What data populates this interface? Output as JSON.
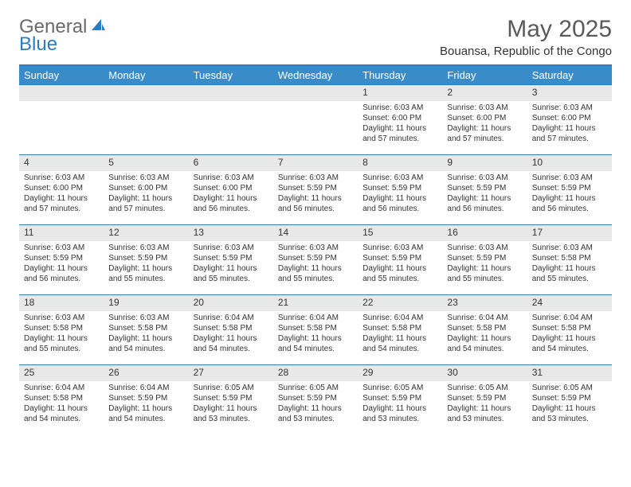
{
  "logo": {
    "text1": "General",
    "text2": "Blue"
  },
  "title": "May 2025",
  "location": "Bouansa, Republic of the Congo",
  "colors": {
    "header_bg": "#3a8cc9",
    "header_text": "#ffffff",
    "border": "#2d7bc0",
    "daynum_bg": "#e8e8e8",
    "text": "#333333",
    "logo_gray": "#6a6a6a",
    "logo_blue": "#2d7bc0"
  },
  "weekdays": [
    "Sunday",
    "Monday",
    "Tuesday",
    "Wednesday",
    "Thursday",
    "Friday",
    "Saturday"
  ],
  "weeks": [
    [
      null,
      null,
      null,
      null,
      {
        "n": "1",
        "sr": "Sunrise: 6:03 AM",
        "ss": "Sunset: 6:00 PM",
        "dl": "Daylight: 11 hours and 57 minutes."
      },
      {
        "n": "2",
        "sr": "Sunrise: 6:03 AM",
        "ss": "Sunset: 6:00 PM",
        "dl": "Daylight: 11 hours and 57 minutes."
      },
      {
        "n": "3",
        "sr": "Sunrise: 6:03 AM",
        "ss": "Sunset: 6:00 PM",
        "dl": "Daylight: 11 hours and 57 minutes."
      }
    ],
    [
      {
        "n": "4",
        "sr": "Sunrise: 6:03 AM",
        "ss": "Sunset: 6:00 PM",
        "dl": "Daylight: 11 hours and 57 minutes."
      },
      {
        "n": "5",
        "sr": "Sunrise: 6:03 AM",
        "ss": "Sunset: 6:00 PM",
        "dl": "Daylight: 11 hours and 57 minutes."
      },
      {
        "n": "6",
        "sr": "Sunrise: 6:03 AM",
        "ss": "Sunset: 6:00 PM",
        "dl": "Daylight: 11 hours and 56 minutes."
      },
      {
        "n": "7",
        "sr": "Sunrise: 6:03 AM",
        "ss": "Sunset: 5:59 PM",
        "dl": "Daylight: 11 hours and 56 minutes."
      },
      {
        "n": "8",
        "sr": "Sunrise: 6:03 AM",
        "ss": "Sunset: 5:59 PM",
        "dl": "Daylight: 11 hours and 56 minutes."
      },
      {
        "n": "9",
        "sr": "Sunrise: 6:03 AM",
        "ss": "Sunset: 5:59 PM",
        "dl": "Daylight: 11 hours and 56 minutes."
      },
      {
        "n": "10",
        "sr": "Sunrise: 6:03 AM",
        "ss": "Sunset: 5:59 PM",
        "dl": "Daylight: 11 hours and 56 minutes."
      }
    ],
    [
      {
        "n": "11",
        "sr": "Sunrise: 6:03 AM",
        "ss": "Sunset: 5:59 PM",
        "dl": "Daylight: 11 hours and 56 minutes."
      },
      {
        "n": "12",
        "sr": "Sunrise: 6:03 AM",
        "ss": "Sunset: 5:59 PM",
        "dl": "Daylight: 11 hours and 55 minutes."
      },
      {
        "n": "13",
        "sr": "Sunrise: 6:03 AM",
        "ss": "Sunset: 5:59 PM",
        "dl": "Daylight: 11 hours and 55 minutes."
      },
      {
        "n": "14",
        "sr": "Sunrise: 6:03 AM",
        "ss": "Sunset: 5:59 PM",
        "dl": "Daylight: 11 hours and 55 minutes."
      },
      {
        "n": "15",
        "sr": "Sunrise: 6:03 AM",
        "ss": "Sunset: 5:59 PM",
        "dl": "Daylight: 11 hours and 55 minutes."
      },
      {
        "n": "16",
        "sr": "Sunrise: 6:03 AM",
        "ss": "Sunset: 5:59 PM",
        "dl": "Daylight: 11 hours and 55 minutes."
      },
      {
        "n": "17",
        "sr": "Sunrise: 6:03 AM",
        "ss": "Sunset: 5:58 PM",
        "dl": "Daylight: 11 hours and 55 minutes."
      }
    ],
    [
      {
        "n": "18",
        "sr": "Sunrise: 6:03 AM",
        "ss": "Sunset: 5:58 PM",
        "dl": "Daylight: 11 hours and 55 minutes."
      },
      {
        "n": "19",
        "sr": "Sunrise: 6:03 AM",
        "ss": "Sunset: 5:58 PM",
        "dl": "Daylight: 11 hours and 54 minutes."
      },
      {
        "n": "20",
        "sr": "Sunrise: 6:04 AM",
        "ss": "Sunset: 5:58 PM",
        "dl": "Daylight: 11 hours and 54 minutes."
      },
      {
        "n": "21",
        "sr": "Sunrise: 6:04 AM",
        "ss": "Sunset: 5:58 PM",
        "dl": "Daylight: 11 hours and 54 minutes."
      },
      {
        "n": "22",
        "sr": "Sunrise: 6:04 AM",
        "ss": "Sunset: 5:58 PM",
        "dl": "Daylight: 11 hours and 54 minutes."
      },
      {
        "n": "23",
        "sr": "Sunrise: 6:04 AM",
        "ss": "Sunset: 5:58 PM",
        "dl": "Daylight: 11 hours and 54 minutes."
      },
      {
        "n": "24",
        "sr": "Sunrise: 6:04 AM",
        "ss": "Sunset: 5:58 PM",
        "dl": "Daylight: 11 hours and 54 minutes."
      }
    ],
    [
      {
        "n": "25",
        "sr": "Sunrise: 6:04 AM",
        "ss": "Sunset: 5:58 PM",
        "dl": "Daylight: 11 hours and 54 minutes."
      },
      {
        "n": "26",
        "sr": "Sunrise: 6:04 AM",
        "ss": "Sunset: 5:59 PM",
        "dl": "Daylight: 11 hours and 54 minutes."
      },
      {
        "n": "27",
        "sr": "Sunrise: 6:05 AM",
        "ss": "Sunset: 5:59 PM",
        "dl": "Daylight: 11 hours and 53 minutes."
      },
      {
        "n": "28",
        "sr": "Sunrise: 6:05 AM",
        "ss": "Sunset: 5:59 PM",
        "dl": "Daylight: 11 hours and 53 minutes."
      },
      {
        "n": "29",
        "sr": "Sunrise: 6:05 AM",
        "ss": "Sunset: 5:59 PM",
        "dl": "Daylight: 11 hours and 53 minutes."
      },
      {
        "n": "30",
        "sr": "Sunrise: 6:05 AM",
        "ss": "Sunset: 5:59 PM",
        "dl": "Daylight: 11 hours and 53 minutes."
      },
      {
        "n": "31",
        "sr": "Sunrise: 6:05 AM",
        "ss": "Sunset: 5:59 PM",
        "dl": "Daylight: 11 hours and 53 minutes."
      }
    ]
  ]
}
